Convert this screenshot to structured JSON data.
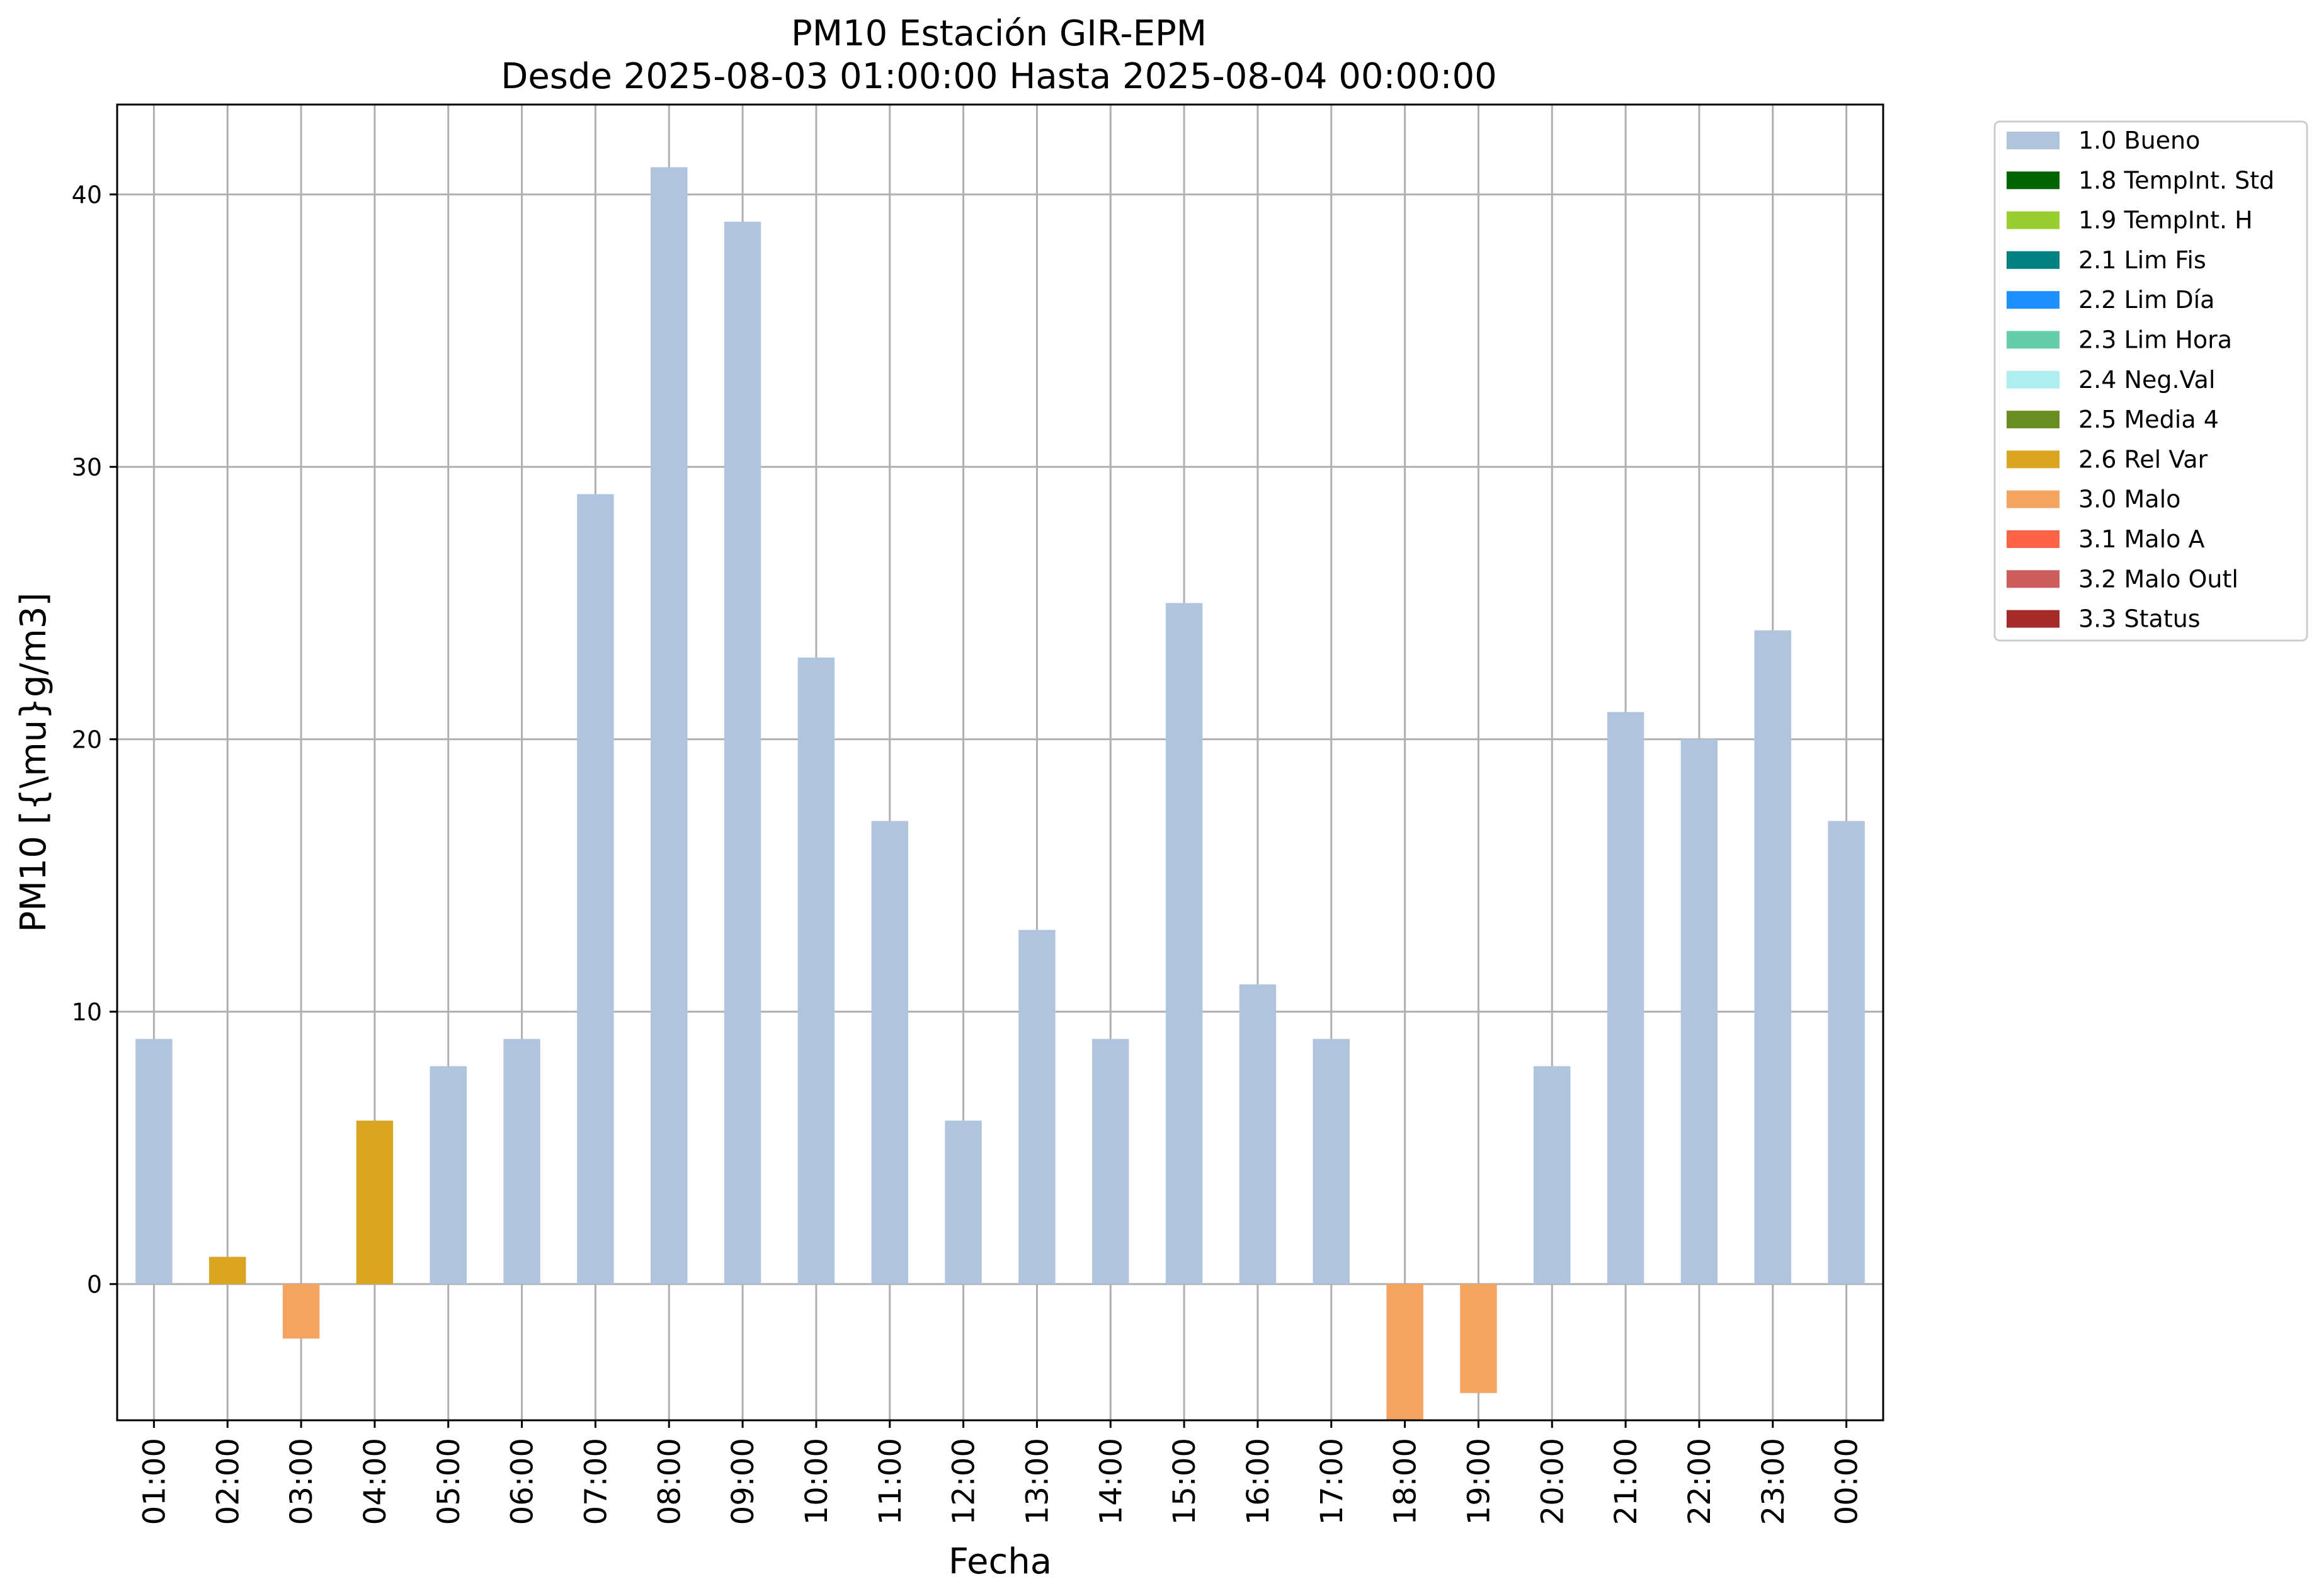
{
  "chart_data": {
    "type": "bar",
    "title": "PM10 Estación GIR-EPM",
    "subtitle": "Desde 2025-08-03 01:00:00 Hasta 2025-08-04 00:00:00",
    "xlabel": "Fecha",
    "ylabel": "PM10 [{\\mu}g/m3]",
    "ylim": [
      -5,
      43.3
    ],
    "yticks": [
      "0",
      "10",
      "20",
      "30",
      "40"
    ],
    "grid": true,
    "legend_position": "outside-top-right",
    "categories": [
      "01:00",
      "02:00",
      "03:00",
      "04:00",
      "05:00",
      "06:00",
      "07:00",
      "08:00",
      "09:00",
      "10:00",
      "11:00",
      "12:00",
      "13:00",
      "14:00",
      "15:00",
      "16:00",
      "17:00",
      "18:00",
      "19:00",
      "20:00",
      "21:00",
      "22:00",
      "23:00",
      "00:00"
    ],
    "values": [
      9,
      1,
      -2,
      6,
      8,
      9,
      29,
      41,
      39,
      23,
      17,
      6,
      13,
      9,
      25,
      11,
      9,
      -5,
      -4,
      8,
      21,
      20,
      24,
      17
    ],
    "flags": [
      "1.0 Bueno",
      "2.6 Rel Var",
      "3.0 Malo",
      "2.6 Rel Var",
      "1.0 Bueno",
      "1.0 Bueno",
      "1.0 Bueno",
      "1.0 Bueno",
      "1.0 Bueno",
      "1.0 Bueno",
      "1.0 Bueno",
      "1.0 Bueno",
      "1.0 Bueno",
      "1.0 Bueno",
      "1.0 Bueno",
      "1.0 Bueno",
      "1.0 Bueno",
      "3.0 Malo",
      "3.0 Malo",
      "1.0 Bueno",
      "1.0 Bueno",
      "1.0 Bueno",
      "1.0 Bueno",
      "1.0 Bueno"
    ],
    "legend": [
      {
        "label": "1.0 Bueno",
        "color": "#b0c4de"
      },
      {
        "label": "1.8 TempInt. Std",
        "color": "#006400"
      },
      {
        "label": "1.9 TempInt. H",
        "color": "#9acd32"
      },
      {
        "label": "2.1 Lim Fis",
        "color": "#008080"
      },
      {
        "label": "2.2 Lim Día",
        "color": "#1e90ff"
      },
      {
        "label": "2.3 Lim Hora",
        "color": "#66cdaa"
      },
      {
        "label": "2.4 Neg.Val",
        "color": "#afeeee"
      },
      {
        "label": "2.5 Media 4",
        "color": "#6b8e23"
      },
      {
        "label": "2.6 Rel Var",
        "color": "#daa520"
      },
      {
        "label": "3.0 Malo",
        "color": "#f4a460"
      },
      {
        "label": "3.1 Malo A",
        "color": "#ff6347"
      },
      {
        "label": "3.2 Malo Outl",
        "color": "#cd5c5c"
      },
      {
        "label": "3.3 Status",
        "color": "#a52a2a"
      }
    ]
  }
}
